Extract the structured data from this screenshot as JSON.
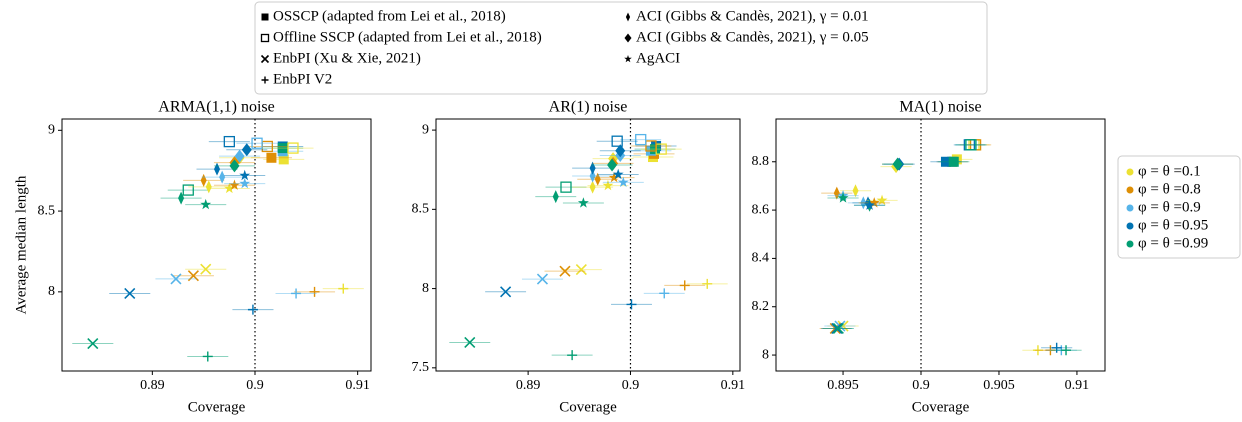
{
  "method_legend": [
    {
      "label": "OSSCP (adapted from Lei et al., 2018)",
      "marker": "square-filled"
    },
    {
      "label": "Offline SSCP (adapted from Lei et al., 2018)",
      "marker": "square-open"
    },
    {
      "label": "EnbPI (Xu & Xie, 2021)",
      "marker": "x"
    },
    {
      "label": "EnbPI V2",
      "marker": "plus"
    },
    {
      "label": "ACI (Gibbs & Candès, 2021), γ = 0.01",
      "marker": "thin-diamond"
    },
    {
      "label": "ACI (Gibbs & Candès, 2021), γ = 0.05",
      "marker": "diamond"
    },
    {
      "label": "AgACI",
      "marker": "star"
    }
  ],
  "color_legend": [
    {
      "label": "φ = θ =0.1",
      "color": "#ece133"
    },
    {
      "label": "φ = θ =0.8",
      "color": "#de8f05"
    },
    {
      "label": "φ = θ =0.9",
      "color": "#56b4e9"
    },
    {
      "label": "φ = θ =0.95",
      "color": "#0173b2"
    },
    {
      "label": "φ = θ =0.99",
      "color": "#029e73"
    }
  ],
  "chart_data": [
    {
      "type": "scatter",
      "title": "ARMA(1,1) noise",
      "xlabel": "Coverage",
      "ylabel": "Average median length",
      "xlim": [
        0.8812,
        0.9113
      ],
      "ylim": [
        7.51,
        9.07
      ],
      "xticks": [
        0.89,
        0.9,
        0.91
      ],
      "yticks": [
        8.0,
        8.5,
        9.0
      ],
      "reference_x": 0.9,
      "series": [
        {
          "x": [
            0.9028,
            0.9016,
            0.9027,
            0.9027,
            0.9027
          ],
          "values": [
            8.82,
            8.83,
            8.87,
            8.9,
            8.89
          ],
          "xerr": [
            0.002,
            0.002,
            0.002,
            0.002,
            0.002
          ]
        },
        {
          "x": [
            0.9037,
            0.9012,
            0.9002,
            0.8975,
            0.8935
          ],
          "values": [
            8.89,
            8.9,
            8.92,
            8.93,
            8.63
          ],
          "xerr": [
            0.002,
            0.002,
            0.002,
            0.002,
            0.002
          ]
        },
        {
          "x": [
            0.8952,
            0.894,
            0.8923,
            0.8878,
            0.8842
          ],
          "values": [
            8.14,
            8.1,
            8.08,
            7.99,
            7.68
          ],
          "xerr": [
            0.002,
            0.002,
            0.002,
            0.002,
            0.002
          ]
        },
        {
          "x": [
            0.9086,
            0.9058,
            0.904,
            0.8998,
            0.8954
          ],
          "values": [
            8.02,
            8.0,
            7.99,
            7.89,
            7.6
          ],
          "xerr": [
            0.002,
            0.002,
            0.002,
            0.002,
            0.002
          ]
        },
        {
          "x": [
            0.8955,
            0.895,
            0.8968,
            0.8963,
            0.8928
          ],
          "values": [
            8.65,
            8.69,
            8.71,
            8.76,
            8.58
          ],
          "xerr": [
            0.002,
            0.002,
            0.002,
            0.002,
            0.002
          ]
        },
        {
          "x": [
            0.8985,
            0.898,
            0.8985,
            0.8992,
            0.898
          ],
          "values": [
            8.83,
            8.8,
            8.84,
            8.88,
            8.78
          ],
          "xerr": [
            0.002,
            0.002,
            0.002,
            0.002,
            0.002
          ]
        },
        {
          "x": [
            0.8975,
            0.898,
            0.899,
            0.899,
            0.8952
          ],
          "values": [
            8.64,
            8.66,
            8.67,
            8.72,
            8.54
          ],
          "xerr": [
            0.002,
            0.002,
            0.002,
            0.002,
            0.002
          ]
        }
      ]
    },
    {
      "type": "scatter",
      "title": "AR(1) noise",
      "xlabel": "Coverage",
      "xlim": [
        0.881,
        0.9107
      ],
      "ylim": [
        7.48,
        9.07
      ],
      "xticks": [
        0.89,
        0.9,
        0.91
      ],
      "yticks": [
        7.5,
        8.0,
        8.5,
        9.0
      ],
      "reference_x": 0.9,
      "series": [
        {
          "x": [
            0.9022,
            0.9023,
            0.902,
            0.9025,
            0.9024
          ],
          "values": [
            8.83,
            8.85,
            8.87,
            8.9,
            8.88
          ],
          "xerr": [
            0.002,
            0.002,
            0.002,
            0.002,
            0.002
          ]
        },
        {
          "x": [
            0.903,
            0.902,
            0.901,
            0.8987,
            0.8937
          ],
          "values": [
            8.88,
            8.9,
            8.94,
            8.93,
            8.64
          ],
          "xerr": [
            0.002,
            0.002,
            0.002,
            0.002,
            0.002
          ]
        },
        {
          "x": [
            0.8952,
            0.8936,
            0.8914,
            0.8878,
            0.8843
          ],
          "values": [
            8.12,
            8.11,
            8.06,
            7.98,
            7.66
          ],
          "xerr": [
            0.002,
            0.002,
            0.002,
            0.002,
            0.002
          ]
        },
        {
          "x": [
            0.9075,
            0.9053,
            0.9033,
            0.9001,
            0.8943
          ],
          "values": [
            8.03,
            8.02,
            7.97,
            7.9,
            7.58
          ],
          "xerr": [
            0.002,
            0.002,
            0.002,
            0.002,
            0.002
          ]
        },
        {
          "x": [
            0.8963,
            0.8968,
            0.8963,
            0.8963,
            0.8927
          ],
          "values": [
            8.64,
            8.69,
            8.71,
            8.76,
            8.58
          ],
          "xerr": [
            0.002,
            0.002,
            0.002,
            0.002,
            0.002
          ]
        },
        {
          "x": [
            0.8983,
            0.8983,
            0.899,
            0.899,
            0.8982
          ],
          "values": [
            8.82,
            8.79,
            8.84,
            8.87,
            8.78
          ],
          "xerr": [
            0.002,
            0.002,
            0.002,
            0.002,
            0.002
          ]
        },
        {
          "x": [
            0.8978,
            0.8984,
            0.8993,
            0.8988,
            0.8954
          ],
          "values": [
            8.65,
            8.7,
            8.67,
            8.72,
            8.54
          ],
          "xerr": [
            0.002,
            0.002,
            0.002,
            0.002,
            0.002
          ]
        }
      ]
    },
    {
      "type": "scatter",
      "title": "MA(1) noise",
      "xlabel": "Coverage",
      "xlim": [
        0.8907,
        0.9118
      ],
      "ylim": [
        7.934,
        8.977
      ],
      "xticks": [
        0.895,
        0.9,
        0.905,
        0.91
      ],
      "yticks": [
        8.0,
        8.2,
        8.4,
        8.6,
        8.8
      ],
      "reference_x": 0.9,
      "series": [
        {
          "x": [
            0.9023,
            0.902,
            0.902,
            0.9016,
            0.9021
          ],
          "values": [
            8.81,
            8.8,
            8.8,
            8.8,
            8.8
          ],
          "xerr": [
            0.001,
            0.001,
            0.001,
            0.001,
            0.001
          ]
        },
        {
          "x": [
            0.9034,
            0.9035,
            0.9032,
            0.9031,
            0.9032
          ],
          "values": [
            8.87,
            8.87,
            8.87,
            8.87,
            8.87
          ],
          "xerr": [
            0.001,
            0.001,
            0.001,
            0.001,
            0.001
          ]
        },
        {
          "x": [
            0.895,
            0.8945,
            0.8948,
            0.8946,
            0.8947
          ],
          "values": [
            8.12,
            8.11,
            8.12,
            8.11,
            8.11
          ],
          "xerr": [
            0.001,
            0.001,
            0.001,
            0.001,
            0.001
          ]
        },
        {
          "x": [
            0.9075,
            0.9083,
            0.909,
            0.9087,
            0.9093
          ],
          "values": [
            8.02,
            8.02,
            8.02,
            8.03,
            8.02
          ],
          "xerr": [
            0.001,
            0.001,
            0.001,
            0.001,
            0.001
          ]
        },
        {
          "x": [
            0.8958,
            0.8946,
            0.8963,
            0.8966,
            0.8967
          ],
          "values": [
            8.68,
            8.67,
            8.63,
            8.63,
            8.62
          ],
          "xerr": [
            0.001,
            0.001,
            0.001,
            0.001,
            0.001
          ]
        },
        {
          "x": [
            0.8984,
            0.8985,
            0.8985,
            0.8986,
            0.8985
          ],
          "values": [
            8.78,
            8.79,
            8.79,
            8.79,
            8.79
          ],
          "xerr": [
            0.001,
            0.001,
            0.001,
            0.001,
            0.001
          ]
        },
        {
          "x": [
            0.8975,
            0.897,
            0.895,
            0.8967,
            0.895
          ],
          "values": [
            8.64,
            8.63,
            8.66,
            8.62,
            8.65
          ],
          "xerr": [
            0.001,
            0.001,
            0.001,
            0.001,
            0.001
          ]
        }
      ]
    }
  ]
}
